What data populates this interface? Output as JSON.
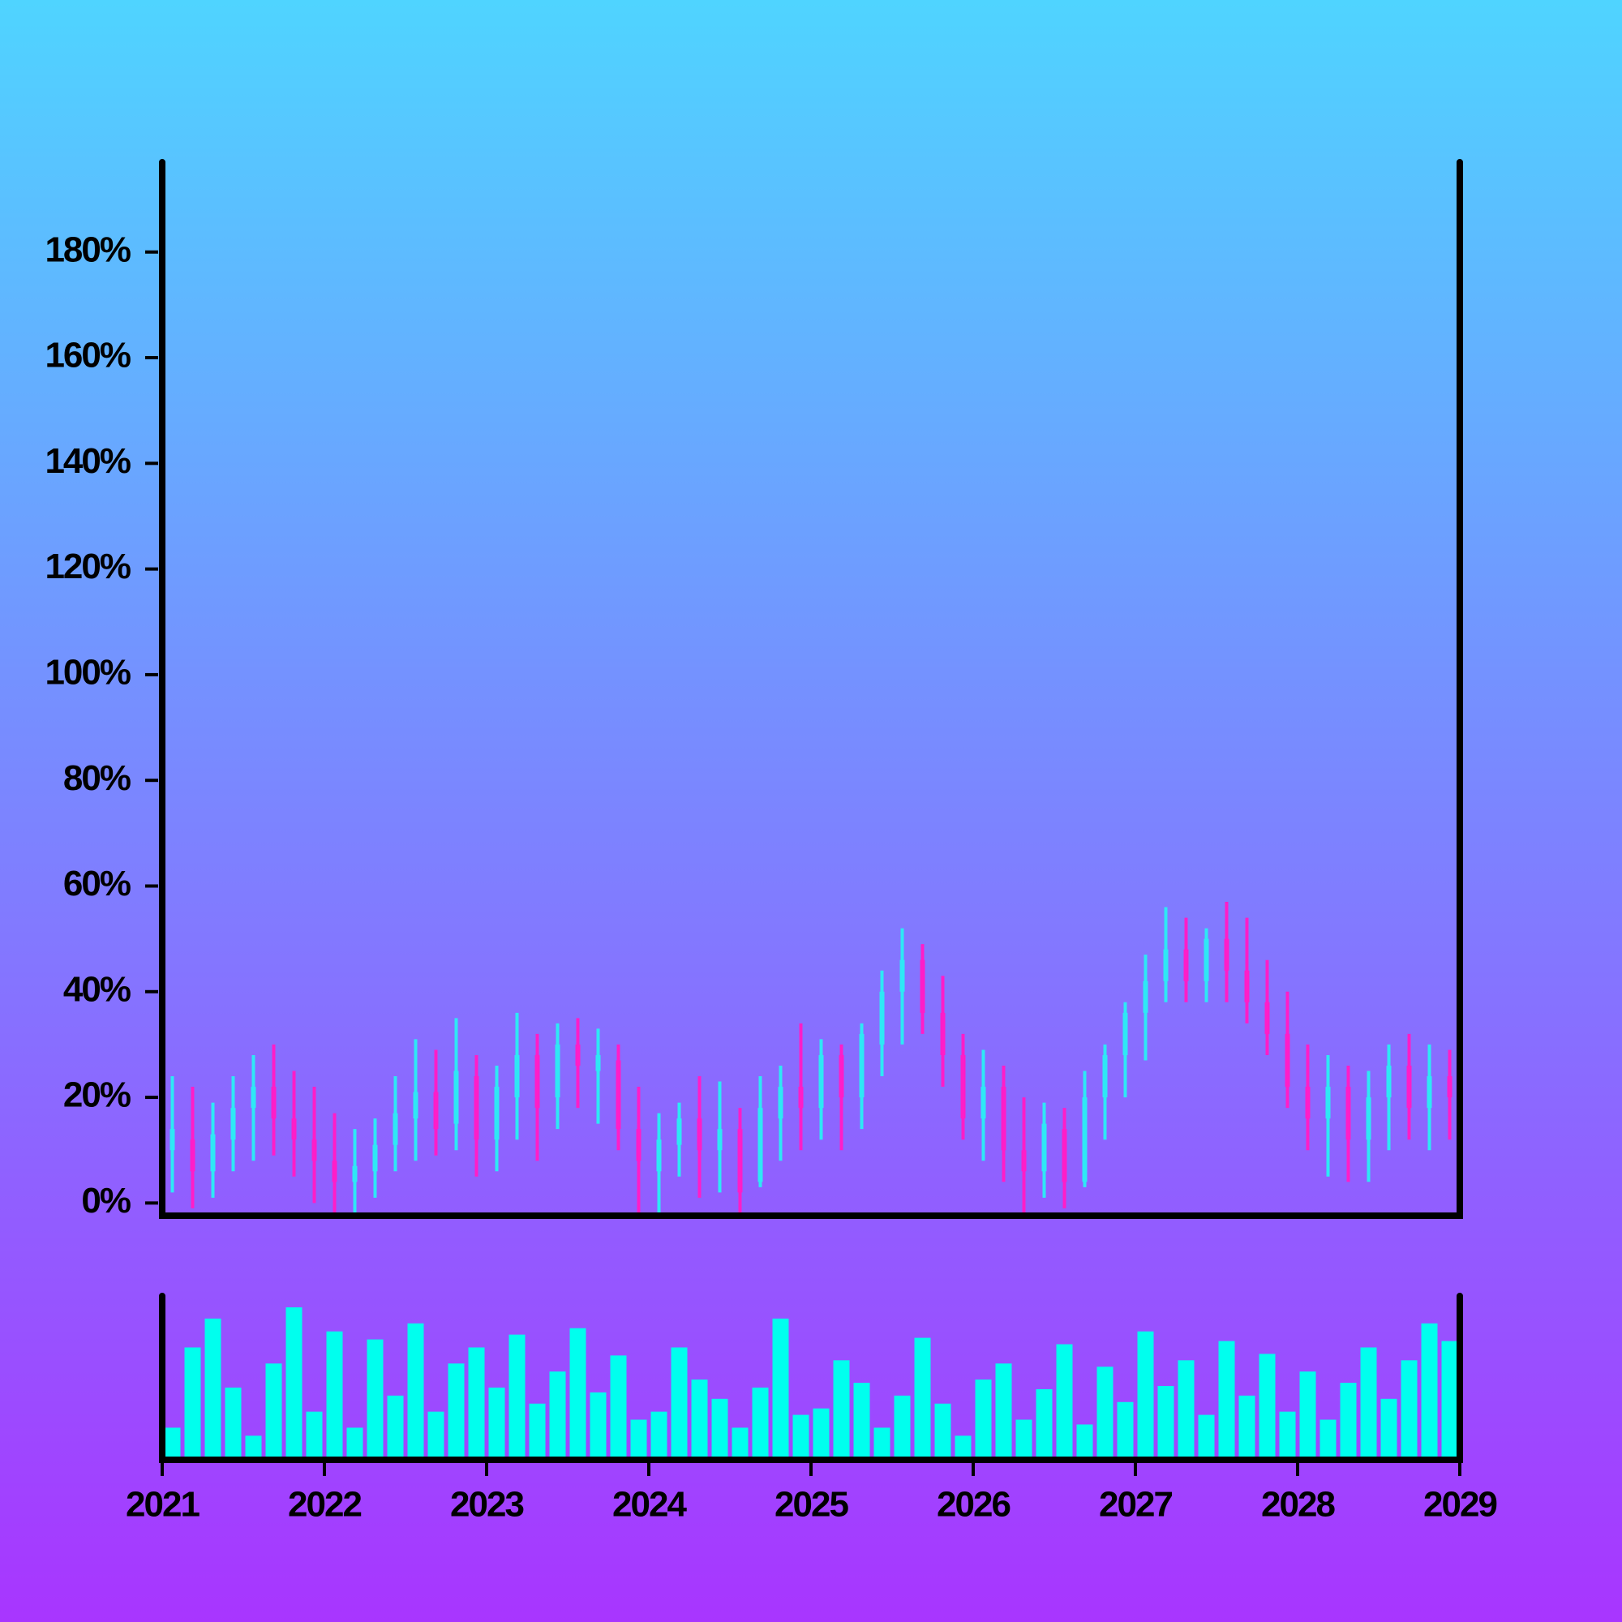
{
  "chart_data": {
    "type": "candlestick",
    "x": [
      2021.0625,
      2021.1875,
      2021.3125,
      2021.4375,
      2021.5625,
      2021.6875,
      2021.8125,
      2021.9375,
      2022.0625,
      2022.1875,
      2022.3125,
      2022.4375,
      2022.5625,
      2022.6875,
      2022.8125,
      2022.9375,
      2023.0625,
      2023.1875,
      2023.3125,
      2023.4375,
      2023.5625,
      2023.6875,
      2023.8125,
      2023.9375,
      2024.0625,
      2024.1875,
      2024.3125,
      2024.4375,
      2024.5625,
      2024.6875,
      2024.8125,
      2024.9375,
      2025.0625,
      2025.1875,
      2025.3125,
      2025.4375,
      2025.5625,
      2025.6875,
      2025.8125,
      2025.9375,
      2026.0625,
      2026.1875,
      2026.3125,
      2026.4375,
      2026.5625,
      2026.6875,
      2026.8125,
      2026.9375,
      2027.0625,
      2027.1875,
      2027.3125,
      2027.4375,
      2027.5625,
      2027.6875,
      2027.8125,
      2027.9375,
      2028.0625,
      2028.1875,
      2028.3125,
      2028.4375,
      2028.5625,
      2028.6875,
      2028.8125,
      2028.9375
    ],
    "open": [
      10,
      12,
      6,
      12,
      18,
      22,
      16,
      12,
      8,
      4,
      6,
      11,
      16,
      21,
      15,
      24,
      12,
      20,
      28,
      20,
      30,
      25,
      27,
      14,
      6,
      11,
      16,
      10,
      14,
      4,
      16,
      22,
      18,
      28,
      20,
      30,
      40,
      46,
      36,
      28,
      16,
      22,
      10,
      6,
      14,
      4,
      20,
      28,
      36,
      42,
      48,
      42,
      50,
      44,
      38,
      32,
      22,
      16,
      22,
      12,
      20,
      26,
      18,
      24
    ],
    "high": [
      24,
      22,
      19,
      24,
      28,
      30,
      25,
      22,
      17,
      14,
      16,
      24,
      31,
      29,
      35,
      28,
      26,
      36,
      32,
      34,
      35,
      33,
      30,
      22,
      17,
      19,
      24,
      23,
      18,
      24,
      26,
      34,
      31,
      30,
      34,
      44,
      52,
      49,
      43,
      32,
      29,
      26,
      20,
      19,
      18,
      25,
      30,
      38,
      47,
      56,
      54,
      52,
      57,
      54,
      46,
      40,
      30,
      28,
      26,
      25,
      30,
      32,
      30,
      29
    ],
    "low": [
      2,
      -1,
      1,
      6,
      8,
      9,
      5,
      0,
      -2,
      -2,
      1,
      6,
      8,
      9,
      10,
      5,
      6,
      12,
      8,
      14,
      18,
      15,
      10,
      -2,
      -2,
      5,
      1,
      2,
      -2,
      3,
      8,
      10,
      12,
      10,
      14,
      24,
      30,
      32,
      22,
      12,
      8,
      4,
      -2,
      1,
      -1,
      3,
      12,
      20,
      27,
      38,
      38,
      38,
      38,
      34,
      28,
      18,
      10,
      5,
      4,
      4,
      10,
      12,
      10,
      12
    ],
    "close": [
      14,
      6,
      13,
      18,
      22,
      16,
      12,
      8,
      4,
      7,
      11,
      17,
      21,
      14,
      25,
      12,
      22,
      28,
      18,
      30,
      26,
      28,
      14,
      8,
      12,
      16,
      10,
      14,
      2,
      18,
      22,
      18,
      28,
      20,
      32,
      40,
      46,
      36,
      28,
      16,
      22,
      10,
      6,
      15,
      4,
      20,
      28,
      36,
      42,
      48,
      42,
      50,
      44,
      38,
      32,
      22,
      16,
      22,
      12,
      20,
      26,
      18,
      24,
      20
    ],
    "volume": [
      20,
      70,
      88,
      45,
      15,
      60,
      95,
      30,
      80,
      20,
      75,
      40,
      85,
      30,
      60,
      70,
      45,
      78,
      35,
      55,
      82,
      42,
      65,
      25,
      30,
      70,
      50,
      38,
      20,
      45,
      88,
      28,
      32,
      62,
      48,
      20,
      40,
      76,
      35,
      15,
      50,
      60,
      25,
      44,
      72,
      22,
      58,
      36,
      80,
      46,
      62,
      28,
      74,
      40,
      66,
      30,
      55,
      25,
      48,
      70,
      38,
      62,
      85,
      74
    ],
    "up_color": "#2ee8f5",
    "down_color": "#ff1dc8",
    "volume_color": "#00ffee",
    "xlim": [
      2021,
      2029
    ],
    "xticks": [
      2021,
      2022,
      2023,
      2024,
      2025,
      2026,
      2027,
      2028,
      2029
    ],
    "ylim": [
      -2.4,
      197
    ],
    "yticks": [
      {
        "value": 0,
        "label": "0%"
      },
      {
        "value": 20,
        "label": "20%"
      },
      {
        "value": 40,
        "label": "40%"
      },
      {
        "value": 60,
        "label": "60%"
      },
      {
        "value": 80,
        "label": "80%"
      },
      {
        "value": 100,
        "label": "100%"
      },
      {
        "value": 120,
        "label": "120%"
      },
      {
        "value": 140,
        "label": "140%"
      },
      {
        "value": 160,
        "label": "160%"
      },
      {
        "value": 180,
        "label": "180%"
      }
    ]
  }
}
